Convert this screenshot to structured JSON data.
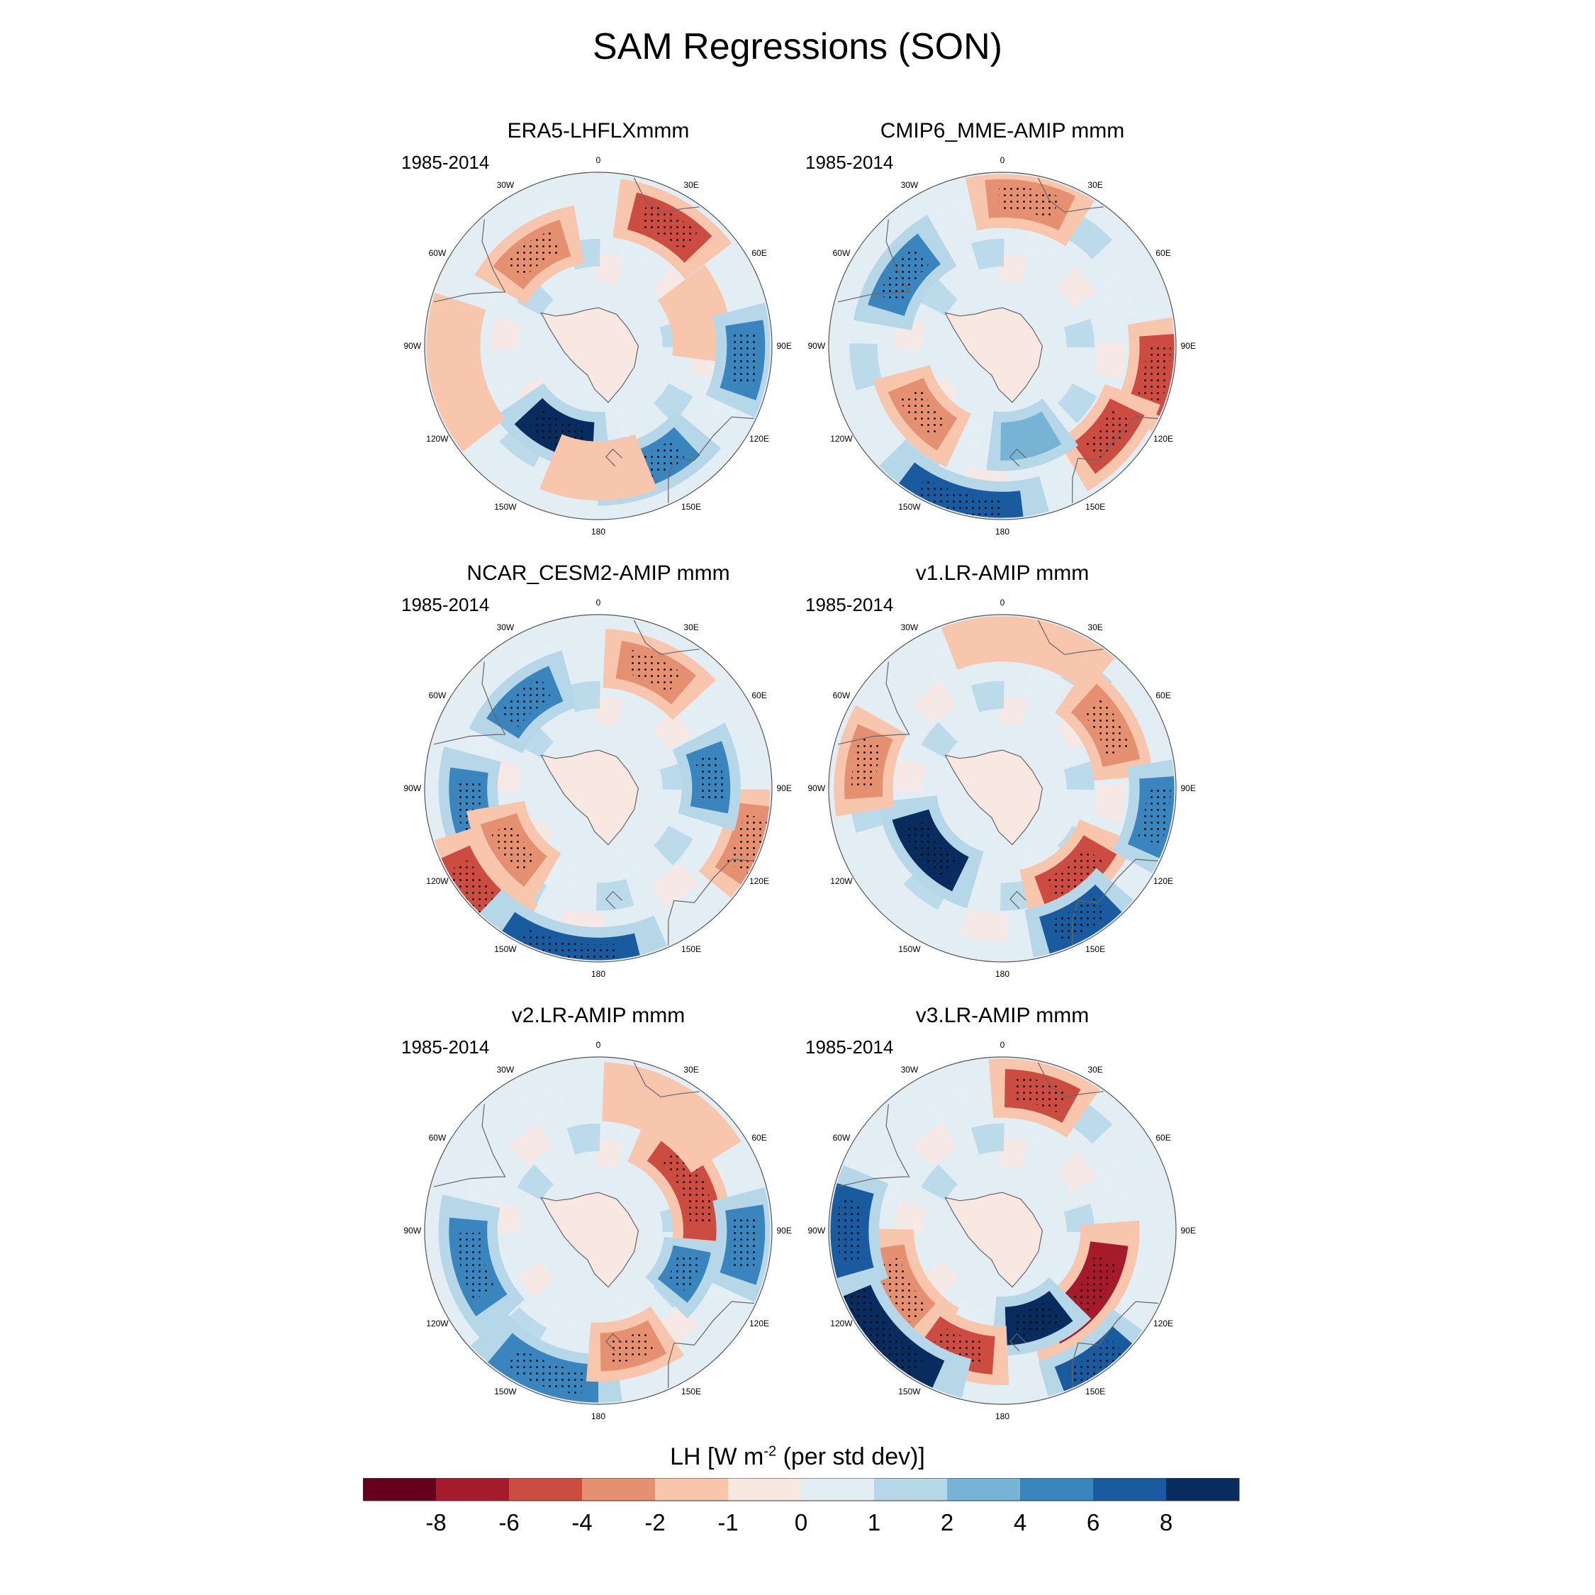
{
  "figure": {
    "title": "SAM Regressions (SON)",
    "period": "1985-2014"
  },
  "panels": [
    {
      "title": "ERA5-LHFLXmmm",
      "period": "1985-2014"
    },
    {
      "title": "CMIP6_MME-AMIP  mmm",
      "period": "1985-2014"
    },
    {
      "title": "NCAR_CESM2-AMIP  mmm",
      "period": "1985-2014"
    },
    {
      "title": "v1.LR-AMIP  mmm",
      "period": "1985-2014"
    },
    {
      "title": "v2.LR-AMIP  mmm",
      "period": "1985-2014"
    },
    {
      "title": "v3.LR-AMIP  mmm",
      "period": "1985-2014"
    }
  ],
  "longitude_labels": [
    "0",
    "30E",
    "60E",
    "90E",
    "120E",
    "150E",
    "180",
    "150W",
    "120W",
    "90W",
    "60W",
    "30W"
  ],
  "colorbar": {
    "title_main": "LH [W m",
    "title_exp": "-2",
    "title_tail": " (per std dev)]",
    "ticks": [
      "-8",
      "-6",
      "-4",
      "-2",
      "-1",
      "0",
      "1",
      "2",
      "4",
      "6",
      "8"
    ],
    "colors": [
      "#67001f",
      "#a51b2b",
      "#cc4c41",
      "#e69072",
      "#f8c6ac",
      "#f9e8e2",
      "#e3eef4",
      "#b5d7e8",
      "#77b3d5",
      "#3a85bd",
      "#1a5a9f",
      "#082c5e"
    ]
  },
  "chart_data": {
    "type": "map",
    "projection": "south polar stereographic",
    "variable": "LH",
    "units": "W m-2 (per std dev)",
    "season": "SON",
    "levels": [
      -8,
      -6,
      -4,
      -2,
      -1,
      0,
      1,
      2,
      4,
      6,
      8
    ],
    "panels": [
      {
        "name": "ERA5-LHFLXmmm",
        "blobs": [
          {
            "lon": 205,
            "r": 0.55,
            "level": 8,
            "w": 22
          },
          {
            "lon": 155,
            "r": 0.75,
            "level": 4,
            "w": 18
          },
          {
            "lon": 30,
            "r": 0.8,
            "level": -6,
            "w": 16
          },
          {
            "lon": 325,
            "r": 0.65,
            "level": -4,
            "w": 18
          },
          {
            "lon": 180,
            "r": 0.72,
            "level": -2,
            "w": 16
          },
          {
            "lon": 260,
            "r": 0.85,
            "level": -2,
            "w": 20
          },
          {
            "lon": 75,
            "r": 0.6,
            "level": -2,
            "w": 16
          },
          {
            "lon": 95,
            "r": 0.85,
            "level": 4,
            "w": 14
          }
        ]
      },
      {
        "name": "CMIP6_MME-AMIP  mmm",
        "blobs": [
          {
            "lon": 10,
            "r": 0.85,
            "level": -4,
            "w": 16
          },
          {
            "lon": 305,
            "r": 0.7,
            "level": 4,
            "w": 18
          },
          {
            "lon": 230,
            "r": 0.6,
            "level": -4,
            "w": 18
          },
          {
            "lon": 100,
            "r": 0.9,
            "level": -6,
            "w": 14
          },
          {
            "lon": 130,
            "r": 0.8,
            "level": -6,
            "w": 14
          },
          {
            "lon": 195,
            "r": 0.95,
            "level": 6,
            "w": 22
          },
          {
            "lon": 165,
            "r": 0.55,
            "level": 2,
            "w": 16
          }
        ]
      },
      {
        "name": "NCAR_CESM2-AMIP  mmm",
        "blobs": [
          {
            "lon": 25,
            "r": 0.75,
            "level": -4,
            "w": 16
          },
          {
            "lon": 320,
            "r": 0.65,
            "level": 4,
            "w": 18
          },
          {
            "lon": 260,
            "r": 0.75,
            "level": 4,
            "w": 18
          },
          {
            "lon": 235,
            "r": 0.6,
            "level": -4,
            "w": 18
          },
          {
            "lon": 230,
            "r": 0.92,
            "level": -6,
            "w": 16
          },
          {
            "lon": 110,
            "r": 0.92,
            "level": -4,
            "w": 14
          },
          {
            "lon": 85,
            "r": 0.65,
            "level": 4,
            "w": 16
          },
          {
            "lon": 190,
            "r": 0.97,
            "level": 6,
            "w": 24
          }
        ]
      },
      {
        "name": "v1.LR-AMIP  mmm",
        "blobs": [
          {
            "lon": 230,
            "r": 0.55,
            "level": 8,
            "w": 24
          },
          {
            "lon": 140,
            "r": 0.65,
            "level": -6,
            "w": 20
          },
          {
            "lon": 60,
            "r": 0.7,
            "level": -4,
            "w": 18
          },
          {
            "lon": 10,
            "r": 0.9,
            "level": -2,
            "w": 22
          },
          {
            "lon": 280,
            "r": 0.8,
            "level": -4,
            "w": 14
          },
          {
            "lon": 150,
            "r": 0.88,
            "level": 6,
            "w": 14
          },
          {
            "lon": 100,
            "r": 0.9,
            "level": 4,
            "w": 14
          }
        ]
      },
      {
        "name": "v2.LR-AMIP  mmm",
        "blobs": [
          {
            "lon": 65,
            "r": 0.6,
            "level": -6,
            "w": 30
          },
          {
            "lon": 95,
            "r": 0.85,
            "level": 4,
            "w": 14
          },
          {
            "lon": 115,
            "r": 0.55,
            "level": 4,
            "w": 14
          },
          {
            "lon": 255,
            "r": 0.75,
            "level": 4,
            "w": 20
          },
          {
            "lon": 200,
            "r": 0.88,
            "level": 4,
            "w": 20
          },
          {
            "lon": 165,
            "r": 0.7,
            "level": -4,
            "w": 14
          },
          {
            "lon": 30,
            "r": 0.8,
            "level": -2,
            "w": 20
          }
        ]
      },
      {
        "name": "v3.LR-AMIP  mmm",
        "blobs": [
          {
            "lon": 125,
            "r": 0.62,
            "level": -8,
            "w": 28
          },
          {
            "lon": 160,
            "r": 0.55,
            "level": 8,
            "w": 18
          },
          {
            "lon": 240,
            "r": 0.68,
            "level": -4,
            "w": 22
          },
          {
            "lon": 200,
            "r": 0.72,
            "level": -6,
            "w": 16
          },
          {
            "lon": 230,
            "r": 0.93,
            "level": 8,
            "w": 26
          },
          {
            "lon": 270,
            "r": 0.88,
            "level": 6,
            "w": 16
          },
          {
            "lon": 15,
            "r": 0.82,
            "level": -6,
            "w": 14
          },
          {
            "lon": 145,
            "r": 0.95,
            "level": 6,
            "w": 14
          }
        ]
      }
    ]
  }
}
